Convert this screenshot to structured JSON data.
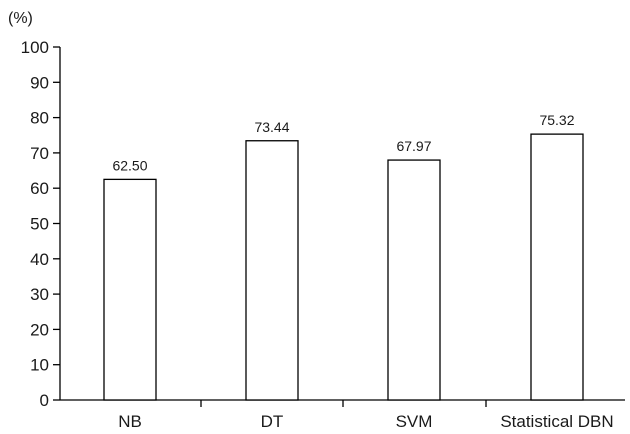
{
  "chart_data": {
    "type": "bar",
    "ylabel": "(%)",
    "categories": [
      "NB",
      "DT",
      "SVM",
      "Statistical DBN"
    ],
    "values": [
      62.5,
      73.44,
      67.97,
      75.32
    ],
    "data_labels": [
      "62.50",
      "73.44",
      "67.97",
      "75.32"
    ],
    "ylim": [
      0,
      100
    ],
    "yticks": [
      "0",
      "10",
      "20",
      "30",
      "40",
      "50",
      "60",
      "70",
      "80",
      "90",
      "100"
    ],
    "grid": false,
    "legend": "none",
    "bar_fill": "#ffffff",
    "bar_stroke": "#000000"
  }
}
